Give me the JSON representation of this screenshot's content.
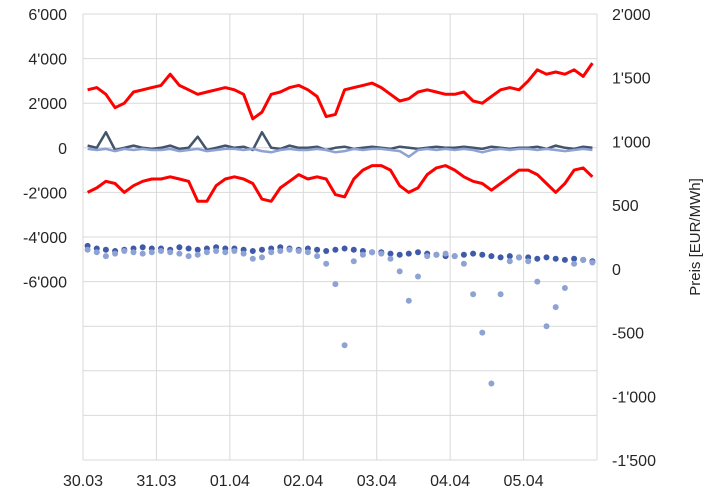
{
  "chart_data": {
    "type": "line",
    "x_start": "30.03",
    "x_labels": [
      "30.03",
      "31.03",
      "01.04",
      "02.04",
      "03.04",
      "04.04",
      "05.04"
    ],
    "xlim": [
      "30.03",
      "06.04"
    ],
    "left_axis": {
      "ylim": [
        -14000,
        6000
      ],
      "ticks": [
        6000,
        4000,
        2000,
        0,
        -2000,
        -4000,
        -6000
      ],
      "tick_labels": [
        "6'000",
        "4'000",
        "2'000",
        "0",
        "-2'000",
        "-4'000",
        "-6'000"
      ],
      "gridlines": [
        6000,
        4000,
        2000,
        0,
        -2000,
        -4000,
        -6000,
        -8000,
        -10000,
        -12000,
        -14000
      ]
    },
    "right_axis": {
      "label": "Preis [EUR/MWh]",
      "ylim": [
        -1500,
        2000
      ],
      "tick_labels": [
        "2'000",
        "1'500",
        "1'000",
        "500",
        "0",
        "-500",
        "-1'000",
        "-1'500"
      ]
    },
    "grid": true,
    "series": [
      {
        "axis": "left",
        "style": "line",
        "color": "#ff0000",
        "day_values": [
          [
            2600,
            2700,
            2400,
            1800,
            2000,
            2500,
            2600,
            2700
          ],
          [
            2800,
            3300,
            2800,
            2600,
            2400,
            2500,
            2600,
            2700
          ],
          [
            2600,
            2400,
            1300,
            1600,
            2400,
            2500,
            2700,
            2800
          ],
          [
            2600,
            2300,
            1400,
            1500,
            2600,
            2700,
            2800,
            2900
          ],
          [
            2700,
            2400,
            2100,
            2200,
            2500,
            2600,
            2500,
            2400
          ],
          [
            2400,
            2500,
            2100,
            2000,
            2300,
            2600,
            2700,
            2600
          ],
          [
            3000,
            3500,
            3300,
            3400,
            3300,
            3500,
            3200,
            3800
          ]
        ]
      },
      {
        "axis": "left",
        "style": "line",
        "color": "#ff0000",
        "day_values": [
          [
            -2000,
            -1800,
            -1500,
            -1600,
            -2000,
            -1700,
            -1500,
            -1400
          ],
          [
            -1400,
            -1300,
            -1400,
            -1500,
            -2400,
            -2400,
            -1700,
            -1400
          ],
          [
            -1300,
            -1400,
            -1600,
            -2300,
            -2400,
            -1800,
            -1500,
            -1200
          ],
          [
            -1400,
            -1300,
            -1400,
            -2100,
            -2200,
            -1400,
            -1000,
            -800
          ],
          [
            -800,
            -1000,
            -1700,
            -2000,
            -1800,
            -1200,
            -900,
            -800
          ],
          [
            -1000,
            -1300,
            -1500,
            -1600,
            -1900,
            -1600,
            -1300,
            -1000
          ],
          [
            -1000,
            -1200,
            -1600,
            -2000,
            -1600,
            -1000,
            -900,
            -1300
          ]
        ]
      },
      {
        "axis": "left",
        "style": "line",
        "color": "#44546a",
        "day_values": [
          [
            100,
            0,
            700,
            -100,
            0,
            100,
            0,
            -50
          ],
          [
            0,
            100,
            -50,
            0,
            500,
            -100,
            0,
            100
          ],
          [
            0,
            50,
            -100,
            700,
            0,
            -50,
            100,
            0
          ],
          [
            0,
            50,
            -100,
            0,
            50,
            -50,
            0,
            50
          ],
          [
            0,
            -50,
            50,
            0,
            -50,
            0,
            50,
            0
          ],
          [
            0,
            50,
            0,
            -50,
            50,
            0,
            -50,
            0
          ],
          [
            0,
            50,
            -50,
            100,
            0,
            -50,
            50,
            0
          ]
        ]
      },
      {
        "axis": "left",
        "style": "line",
        "color": "#8fa2d4",
        "day_values": [
          [
            -50,
            -100,
            -50,
            -150,
            -50,
            -100,
            -50,
            -100
          ],
          [
            -100,
            -50,
            -150,
            -100,
            -50,
            -150,
            -100,
            -50
          ],
          [
            -50,
            -100,
            -50,
            -150,
            -200,
            -100,
            -50,
            -100
          ],
          [
            -100,
            -50,
            -100,
            -200,
            -150,
            -50,
            -100,
            -50
          ],
          [
            -50,
            -100,
            -150,
            -400,
            -100,
            -50,
            -100,
            -50
          ],
          [
            -100,
            -50,
            -100,
            -200,
            -100,
            -50,
            -100,
            -50
          ],
          [
            -50,
            -100,
            -50,
            -100,
            -150,
            -100,
            -50,
            -100
          ]
        ]
      },
      {
        "axis": "right",
        "style": "dots",
        "color": "#3e5aa8",
        "day_values": [
          [
            180,
            160,
            150,
            140,
            150,
            160,
            170,
            160
          ],
          [
            160,
            150,
            170,
            160,
            150,
            160,
            170,
            160
          ],
          [
            160,
            150,
            140,
            150,
            160,
            170,
            160,
            150
          ],
          [
            160,
            150,
            140,
            150,
            160,
            150,
            140,
            130
          ],
          [
            130,
            120,
            110,
            120,
            130,
            120,
            110,
            100
          ],
          [
            100,
            110,
            120,
            110,
            100,
            90,
            100,
            90
          ],
          [
            90,
            80,
            90,
            80,
            70,
            80,
            70,
            60
          ]
        ]
      },
      {
        "axis": "right",
        "style": "dots",
        "color": "#8fa2d4",
        "day_values": [
          [
            150,
            130,
            100,
            120,
            140,
            130,
            120,
            130
          ],
          [
            140,
            130,
            120,
            100,
            110,
            130,
            140,
            130
          ],
          [
            140,
            120,
            80,
            90,
            130,
            140,
            150,
            140
          ],
          [
            130,
            100,
            40,
            -120,
            -600,
            60,
            110,
            130
          ],
          [
            120,
            80,
            -20,
            -250,
            -60,
            100,
            110,
            120
          ],
          [
            100,
            40,
            -200,
            -500,
            -900,
            -200,
            60,
            90
          ],
          [
            60,
            -100,
            -450,
            -300,
            -150,
            40,
            70,
            50
          ]
        ]
      }
    ]
  }
}
